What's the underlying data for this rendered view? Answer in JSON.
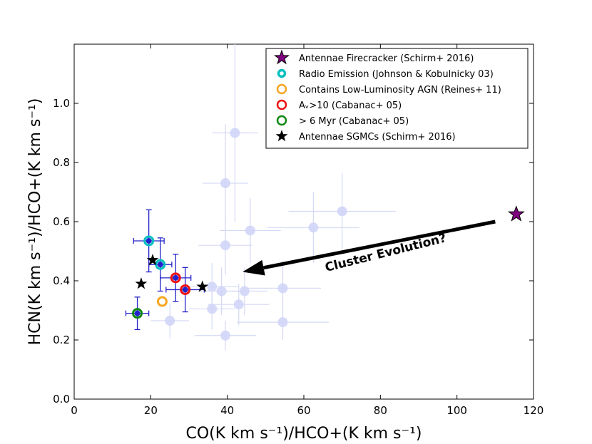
{
  "chart_data": {
    "type": "scatter",
    "title": "",
    "xlabel": "CO(K km s⁻¹)/HCO+(K km s⁻¹)",
    "ylabel": "HCN(K km s⁻¹)/HCO+(K km s⁻¹)",
    "xlim": [
      0,
      120
    ],
    "ylim": [
      0.0,
      1.2
    ],
    "xticks": [
      0,
      20,
      40,
      60,
      80,
      100,
      120
    ],
    "xtick_labels": [
      "0",
      "20",
      "40",
      "60",
      "80",
      "100",
      "120"
    ],
    "yticks": [
      0.0,
      0.2,
      0.4,
      0.6,
      0.8,
      1.0
    ],
    "ytick_labels": [
      "0.0",
      "0.2",
      "0.4",
      "0.6",
      "0.8",
      "1.0"
    ],
    "grid": false,
    "legend_position": "top-right",
    "background_points": [
      {
        "x": 42,
        "y": 0.9,
        "xerr": 6,
        "yerr": 0.3
      },
      {
        "x": 39.5,
        "y": 0.73,
        "xerr": 6,
        "yerr": 0.2
      },
      {
        "x": 70,
        "y": 0.635,
        "xerr": 14,
        "yerr": 0.13
      },
      {
        "x": 62.5,
        "y": 0.58,
        "xerr": 12,
        "yerr": 0.12
      },
      {
        "x": 46,
        "y": 0.57,
        "xerr": 8,
        "yerr": 0.11
      },
      {
        "x": 39.5,
        "y": 0.52,
        "xerr": 7,
        "yerr": 0.1
      },
      {
        "x": 36,
        "y": 0.38,
        "xerr": 7,
        "yerr": 0.08
      },
      {
        "x": 38.5,
        "y": 0.365,
        "xerr": 6,
        "yerr": 0.08
      },
      {
        "x": 44.5,
        "y": 0.365,
        "xerr": 6,
        "yerr": 0.08
      },
      {
        "x": 54.5,
        "y": 0.375,
        "xerr": 10,
        "yerr": 0.08
      },
      {
        "x": 43,
        "y": 0.32,
        "xerr": 8,
        "yerr": 0.07
      },
      {
        "x": 36,
        "y": 0.305,
        "xerr": 6,
        "yerr": 0.07
      },
      {
        "x": 25,
        "y": 0.265,
        "xerr": 5,
        "yerr": 0.06
      },
      {
        "x": 54.5,
        "y": 0.26,
        "xerr": 12,
        "yerr": 0.06
      },
      {
        "x": 39.5,
        "y": 0.215,
        "xerr": 8,
        "yerr": 0.05
      }
    ],
    "errorbar_points": [
      {
        "x": 19.5,
        "y": 0.535,
        "xerr": 4,
        "yerr": 0.105
      },
      {
        "x": 22.5,
        "y": 0.455,
        "xerr": 3,
        "yerr": 0.09
      },
      {
        "x": 26.5,
        "y": 0.41,
        "xerr": 4,
        "yerr": 0.08
      },
      {
        "x": 29,
        "y": 0.37,
        "xerr": 5,
        "yerr": 0.075
      },
      {
        "x": 16.5,
        "y": 0.29,
        "xerr": 3,
        "yerr": 0.055
      }
    ],
    "series": [
      {
        "name": "Antennae Firecracker (Schirm+ 2016)",
        "marker": "star",
        "color": "#800080",
        "points": [
          {
            "x": 115.5,
            "y": 0.625
          }
        ]
      },
      {
        "name": "Radio Emission (Johnson & Kobulnicky 03)",
        "marker": "ring",
        "color": "#00bfbf",
        "points": [
          {
            "x": 19.5,
            "y": 0.535
          },
          {
            "x": 22.5,
            "y": 0.455
          }
        ]
      },
      {
        "name": "Contains Low-Luminosity AGN (Reines+ 11)",
        "marker": "ring",
        "color": "#f5a623",
        "points": [
          {
            "x": 23,
            "y": 0.33
          }
        ]
      },
      {
        "name": "Aᵥ>10 (Cabanac+ 05)",
        "marker": "ring",
        "color": "#ee1111",
        "points": [
          {
            "x": 26.5,
            "y": 0.41
          },
          {
            "x": 29,
            "y": 0.37
          }
        ]
      },
      {
        "name": "> 6 Myr (Cabanac+ 05)",
        "marker": "ring",
        "color": "#118811",
        "points": [
          {
            "x": 16.5,
            "y": 0.29
          }
        ]
      },
      {
        "name": "Antennae SGMCs (Schirm+ 2016)",
        "marker": "star",
        "color": "#000000",
        "points": [
          {
            "x": 17.5,
            "y": 0.39
          },
          {
            "x": 20.5,
            "y": 0.47
          },
          {
            "x": 33.5,
            "y": 0.38
          }
        ]
      }
    ],
    "annotation": {
      "text": "Cluster Evolution?",
      "arrow_from": [
        110,
        0.6
      ],
      "arrow_to": [
        44,
        0.43
      ]
    }
  }
}
